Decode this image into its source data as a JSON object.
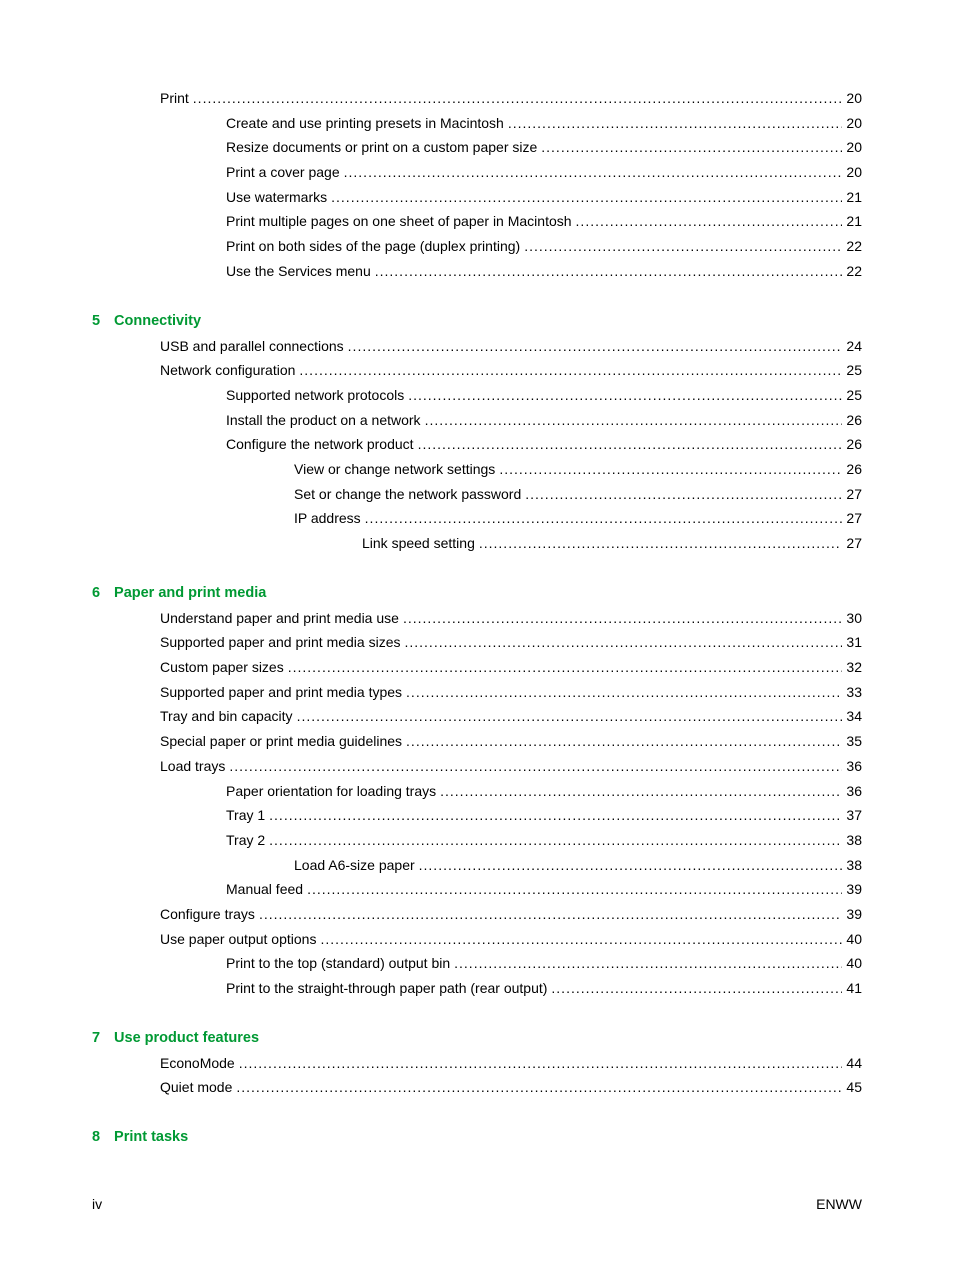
{
  "colors": {
    "heading": "#009933",
    "text": "#000000",
    "background": "#ffffff"
  },
  "typography": {
    "body_font": "Arial",
    "body_size_pt": 10.5,
    "heading_weight": "bold"
  },
  "preceding": {
    "entries": [
      {
        "label": "Print",
        "page": "20",
        "indent": 1
      },
      {
        "label": "Create and use printing presets in Macintosh",
        "page": "20",
        "indent": 2
      },
      {
        "label": "Resize documents or print on a custom paper size",
        "page": "20",
        "indent": 2
      },
      {
        "label": "Print a cover page",
        "page": "20",
        "indent": 2
      },
      {
        "label": "Use watermarks",
        "page": "21",
        "indent": 2
      },
      {
        "label": "Print multiple pages on one sheet of paper in Macintosh",
        "page": "21",
        "indent": 2
      },
      {
        "label": "Print on both sides of the page (duplex printing)",
        "page": "22",
        "indent": 2
      },
      {
        "label": "Use the Services menu",
        "page": "22",
        "indent": 2
      }
    ]
  },
  "sections": [
    {
      "number": "5",
      "title": "Connectivity",
      "entries": [
        {
          "label": "USB and parallel connections",
          "page": "24",
          "indent": 1
        },
        {
          "label": "Network configuration",
          "page": "25",
          "indent": 1
        },
        {
          "label": "Supported network protocols",
          "page": "25",
          "indent": 2
        },
        {
          "label": "Install the product on a network",
          "page": "26",
          "indent": 2
        },
        {
          "label": "Configure the network product",
          "page": "26",
          "indent": 2
        },
        {
          "label": "View or change network settings",
          "page": "26",
          "indent": 3
        },
        {
          "label": "Set or change the network password",
          "page": "27",
          "indent": 3
        },
        {
          "label": "IP address",
          "page": "27",
          "indent": 3
        },
        {
          "label": "Link speed setting",
          "page": "27",
          "indent": 4
        }
      ]
    },
    {
      "number": "6",
      "title": "Paper and print media",
      "entries": [
        {
          "label": "Understand paper and print media use",
          "page": "30",
          "indent": 1
        },
        {
          "label": "Supported paper and print media sizes",
          "page": "31",
          "indent": 1
        },
        {
          "label": "Custom paper sizes",
          "page": "32",
          "indent": 1
        },
        {
          "label": "Supported paper and print media types",
          "page": "33",
          "indent": 1
        },
        {
          "label": "Tray and bin capacity",
          "page": "34",
          "indent": 1
        },
        {
          "label": "Special paper or print media guidelines",
          "page": "35",
          "indent": 1
        },
        {
          "label": "Load trays",
          "page": "36",
          "indent": 1
        },
        {
          "label": "Paper orientation for loading trays",
          "page": "36",
          "indent": 2
        },
        {
          "label": "Tray 1",
          "page": "37",
          "indent": 2
        },
        {
          "label": "Tray 2",
          "page": "38",
          "indent": 2
        },
        {
          "label": "Load A6-size paper",
          "page": "38",
          "indent": 3
        },
        {
          "label": "Manual feed",
          "page": "39",
          "indent": 2
        },
        {
          "label": "Configure trays",
          "page": "39",
          "indent": 1
        },
        {
          "label": "Use paper output options",
          "page": "40",
          "indent": 1
        },
        {
          "label": "Print to the top (standard) output bin",
          "page": "40",
          "indent": 2
        },
        {
          "label": "Print to the straight-through paper path (rear output)",
          "page": "41",
          "indent": 2
        }
      ]
    },
    {
      "number": "7",
      "title": "Use product features",
      "entries": [
        {
          "label": "EconoMode",
          "page": "44",
          "indent": 1
        },
        {
          "label": "Quiet mode",
          "page": "45",
          "indent": 1
        }
      ]
    },
    {
      "number": "8",
      "title": "Print tasks",
      "entries": []
    }
  ],
  "footer": {
    "left": "iv",
    "right": "ENWW"
  }
}
